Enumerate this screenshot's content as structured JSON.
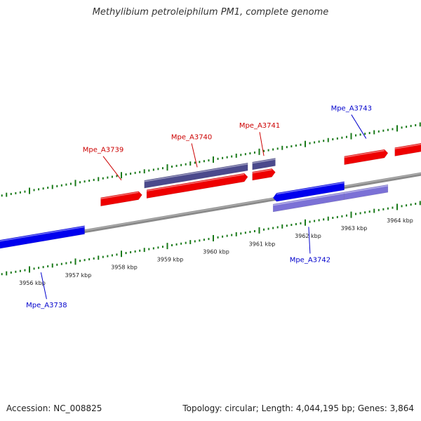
{
  "title": "Methylibium petroleiphilum PM1, complete genome",
  "footer": {
    "accession": "Accession: NC_008825",
    "summary": "Topology: circular; Length: 4,044,195 bp; Genes: 3,864"
  },
  "colors": {
    "forward_gene": "#ee0000",
    "reverse_gene": "#0000ee",
    "forward_other": "#4b4a8c",
    "reverse_other": "#7b71d6",
    "backbone": "#8a8a8a",
    "ticks": "#1a7a1a",
    "forward_label": "#cc0000",
    "reverse_label": "#0000cc"
  },
  "ticks": [
    {
      "kbp": 3956,
      "label": "3956 kbp"
    },
    {
      "kbp": 3957,
      "label": "3957 kbp"
    },
    {
      "kbp": 3958,
      "label": "3958 kbp"
    },
    {
      "kbp": 3959,
      "label": "3959 kbp"
    },
    {
      "kbp": 3960,
      "label": "3960 kbp"
    },
    {
      "kbp": 3961,
      "label": "3961 kbp"
    },
    {
      "kbp": 3962,
      "label": "3962 kbp"
    },
    {
      "kbp": 3963,
      "label": "3963 kbp"
    },
    {
      "kbp": 3964,
      "label": "3964 kbp"
    }
  ],
  "features": [
    {
      "name": "Mpe_A3738",
      "strand": "reverse",
      "ring": "gene",
      "start_kbp": 3955.3,
      "end_kbp": 3957.2,
      "labeled": true
    },
    {
      "name": "Mpe_A3739",
      "strand": "forward",
      "ring": "gene",
      "start_kbp": 3957.55,
      "end_kbp": 3958.45,
      "labeled": true
    },
    {
      "name": "Mpe_A3740",
      "strand": "forward",
      "ring": "gene",
      "start_kbp": 3958.55,
      "end_kbp": 3960.75,
      "labeled": true
    },
    {
      "name": "",
      "strand": "forward",
      "ring": "other",
      "start_kbp": 3958.5,
      "end_kbp": 3960.75,
      "labeled": false
    },
    {
      "name": "Mpe_A3741",
      "strand": "forward",
      "ring": "gene",
      "start_kbp": 3960.85,
      "end_kbp": 3961.35,
      "labeled": true
    },
    {
      "name": "",
      "strand": "forward",
      "ring": "other",
      "start_kbp": 3960.85,
      "end_kbp": 3961.35,
      "labeled": false
    },
    {
      "name": "Mpe_A3742",
      "strand": "reverse",
      "ring": "gene",
      "start_kbp": 3961.3,
      "end_kbp": 3962.85,
      "labeled": true
    },
    {
      "name": "",
      "strand": "reverse",
      "ring": "other",
      "start_kbp": 3961.3,
      "end_kbp": 3962.85,
      "labeled": false
    },
    {
      "name": "",
      "strand": "forward",
      "ring": "gene",
      "start_kbp": 3962.85,
      "end_kbp": 3963.8,
      "labeled": false
    },
    {
      "name": "Mpe_A3743",
      "strand": "reverse",
      "ring": "other",
      "start_kbp": 3962.85,
      "end_kbp": 3963.8,
      "labeled": true
    },
    {
      "name": "",
      "strand": "forward",
      "ring": "gene",
      "start_kbp": 3963.95,
      "end_kbp": 3965.2,
      "labeled": false
    }
  ]
}
